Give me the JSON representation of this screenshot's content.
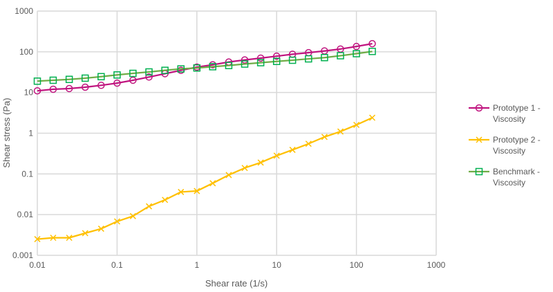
{
  "chart_data": {
    "type": "line",
    "title": "",
    "xlabel": "Shear rate (1/s)",
    "ylabel": "Shear stress (Pa)",
    "xscale": "log",
    "yscale": "log",
    "xlim": [
      0.01,
      1000
    ],
    "ylim": [
      0.001,
      1000
    ],
    "grid": true,
    "legend_position": "right",
    "x_ticks": [
      "0.01",
      "0.1",
      "1",
      "10",
      "100",
      "1000"
    ],
    "y_ticks": [
      "0.001",
      "0.01",
      "0.1",
      "1",
      "10",
      "100",
      "1000"
    ],
    "x": [
      0.01,
      0.0158,
      0.0251,
      0.0398,
      0.0631,
      0.1,
      0.158,
      0.251,
      0.398,
      0.631,
      1,
      1.58,
      2.51,
      3.98,
      6.31,
      10,
      15.8,
      25.1,
      39.8,
      63.1,
      100,
      158
    ],
    "series": [
      {
        "name": "Prototype 1 - Viscosity",
        "legend_lines": [
          "Prototype 1 -",
          "Viscosity"
        ],
        "color": "#c0157f",
        "marker": "circle",
        "values": [
          11,
          12,
          12.5,
          13.5,
          15,
          17,
          20,
          24,
          29,
          35,
          42,
          48,
          56,
          63,
          70,
          78,
          87,
          95,
          105,
          117,
          135,
          158
        ]
      },
      {
        "name": "Prototype 2 - Viscosity",
        "legend_lines": [
          "Prototype 2 -",
          "Viscosity"
        ],
        "color": "#ffc000",
        "marker": "x",
        "values": [
          0.0025,
          0.0027,
          0.0027,
          0.0035,
          0.0045,
          0.0068,
          0.0092,
          0.016,
          0.023,
          0.036,
          0.038,
          0.059,
          0.094,
          0.14,
          0.19,
          0.28,
          0.39,
          0.55,
          0.81,
          1.1,
          1.6,
          2.4
        ]
      },
      {
        "name": "Benchmark - Viscosity",
        "legend_lines": [
          "Benchmark -",
          "Viscosity"
        ],
        "color": "#70ad47",
        "marker_color": "#00b050",
        "marker": "square",
        "values": [
          19,
          20,
          21,
          22.5,
          24.5,
          27,
          29.5,
          32,
          35,
          38,
          40,
          43,
          46,
          50,
          54,
          58,
          62,
          67,
          72,
          80,
          90,
          102
        ]
      }
    ]
  }
}
